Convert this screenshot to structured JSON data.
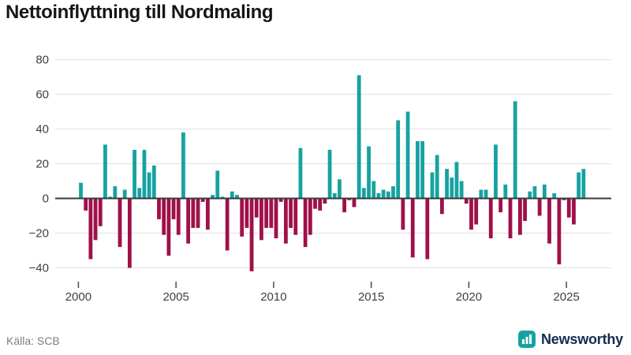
{
  "title": "Nettoinflyttning till Nordmaling",
  "footer": {
    "source": "Källa: SCB",
    "brand": "Newsworthy"
  },
  "icons": {
    "brand_icon": "bar-chart-icon"
  },
  "chart_data": {
    "type": "bar",
    "title": "Nettoinflyttning till Nordmaling",
    "xlabel": "",
    "ylabel": "",
    "x_tick_labels": [
      "2000",
      "2005",
      "2010",
      "2015",
      "2020",
      "2025"
    ],
    "y_ticks": [
      80,
      60,
      40,
      20,
      0,
      -20,
      -40
    ],
    "ylim": [
      -48,
      88
    ],
    "grid": "horizontal",
    "legend": false,
    "bar_color_rule": "positive teal, negative dark red",
    "colors": {
      "positive": "#17a2a2",
      "negative": "#a01049"
    },
    "quarterly": [
      {
        "year": 2000,
        "q": [
          9,
          -7,
          -35,
          -24
        ]
      },
      {
        "year": 2001,
        "q": [
          -16,
          31,
          1,
          7
        ]
      },
      {
        "year": 2002,
        "q": [
          -28,
          5,
          -40,
          28
        ]
      },
      {
        "year": 2003,
        "q": [
          6,
          28,
          15,
          19
        ]
      },
      {
        "year": 2004,
        "q": [
          -12,
          -21,
          -33,
          -12
        ]
      },
      {
        "year": 2005,
        "q": [
          -21,
          38,
          -26,
          -17
        ]
      },
      {
        "year": 2006,
        "q": [
          -17,
          -2,
          -18,
          2
        ]
      },
      {
        "year": 2007,
        "q": [
          16,
          1,
          -30,
          4
        ]
      },
      {
        "year": 2008,
        "q": [
          2,
          -22,
          -17,
          -42
        ]
      },
      {
        "year": 2009,
        "q": [
          -11,
          -24,
          -17,
          -17
        ]
      },
      {
        "year": 2010,
        "q": [
          -23,
          -2,
          -26,
          -17
        ]
      },
      {
        "year": 2011,
        "q": [
          -21,
          29,
          -28,
          -21
        ]
      },
      {
        "year": 2012,
        "q": [
          -6,
          -7,
          -3,
          28
        ]
      },
      {
        "year": 2013,
        "q": [
          3,
          11,
          -8,
          -1
        ]
      },
      {
        "year": 2014,
        "q": [
          -5,
          71,
          6,
          30
        ]
      },
      {
        "year": 2015,
        "q": [
          10,
          3,
          5,
          4
        ]
      },
      {
        "year": 2016,
        "q": [
          7,
          45,
          -18,
          50
        ]
      },
      {
        "year": 2017,
        "q": [
          -34,
          33,
          33,
          -35
        ]
      },
      {
        "year": 2018,
        "q": [
          15,
          25,
          -9,
          17
        ]
      },
      {
        "year": 2019,
        "q": [
          12,
          21,
          10,
          -3
        ]
      },
      {
        "year": 2020,
        "q": [
          -18,
          -15,
          5,
          5
        ]
      },
      {
        "year": 2021,
        "q": [
          -23,
          31,
          -8,
          8
        ]
      },
      {
        "year": 2022,
        "q": [
          -23,
          56,
          -21,
          -13
        ]
      },
      {
        "year": 2023,
        "q": [
          4,
          7,
          -10,
          8
        ]
      },
      {
        "year": 2024,
        "q": [
          -26,
          3,
          -38,
          -1
        ]
      },
      {
        "year": 2025,
        "q": [
          -11,
          -15,
          15,
          17
        ]
      }
    ]
  }
}
